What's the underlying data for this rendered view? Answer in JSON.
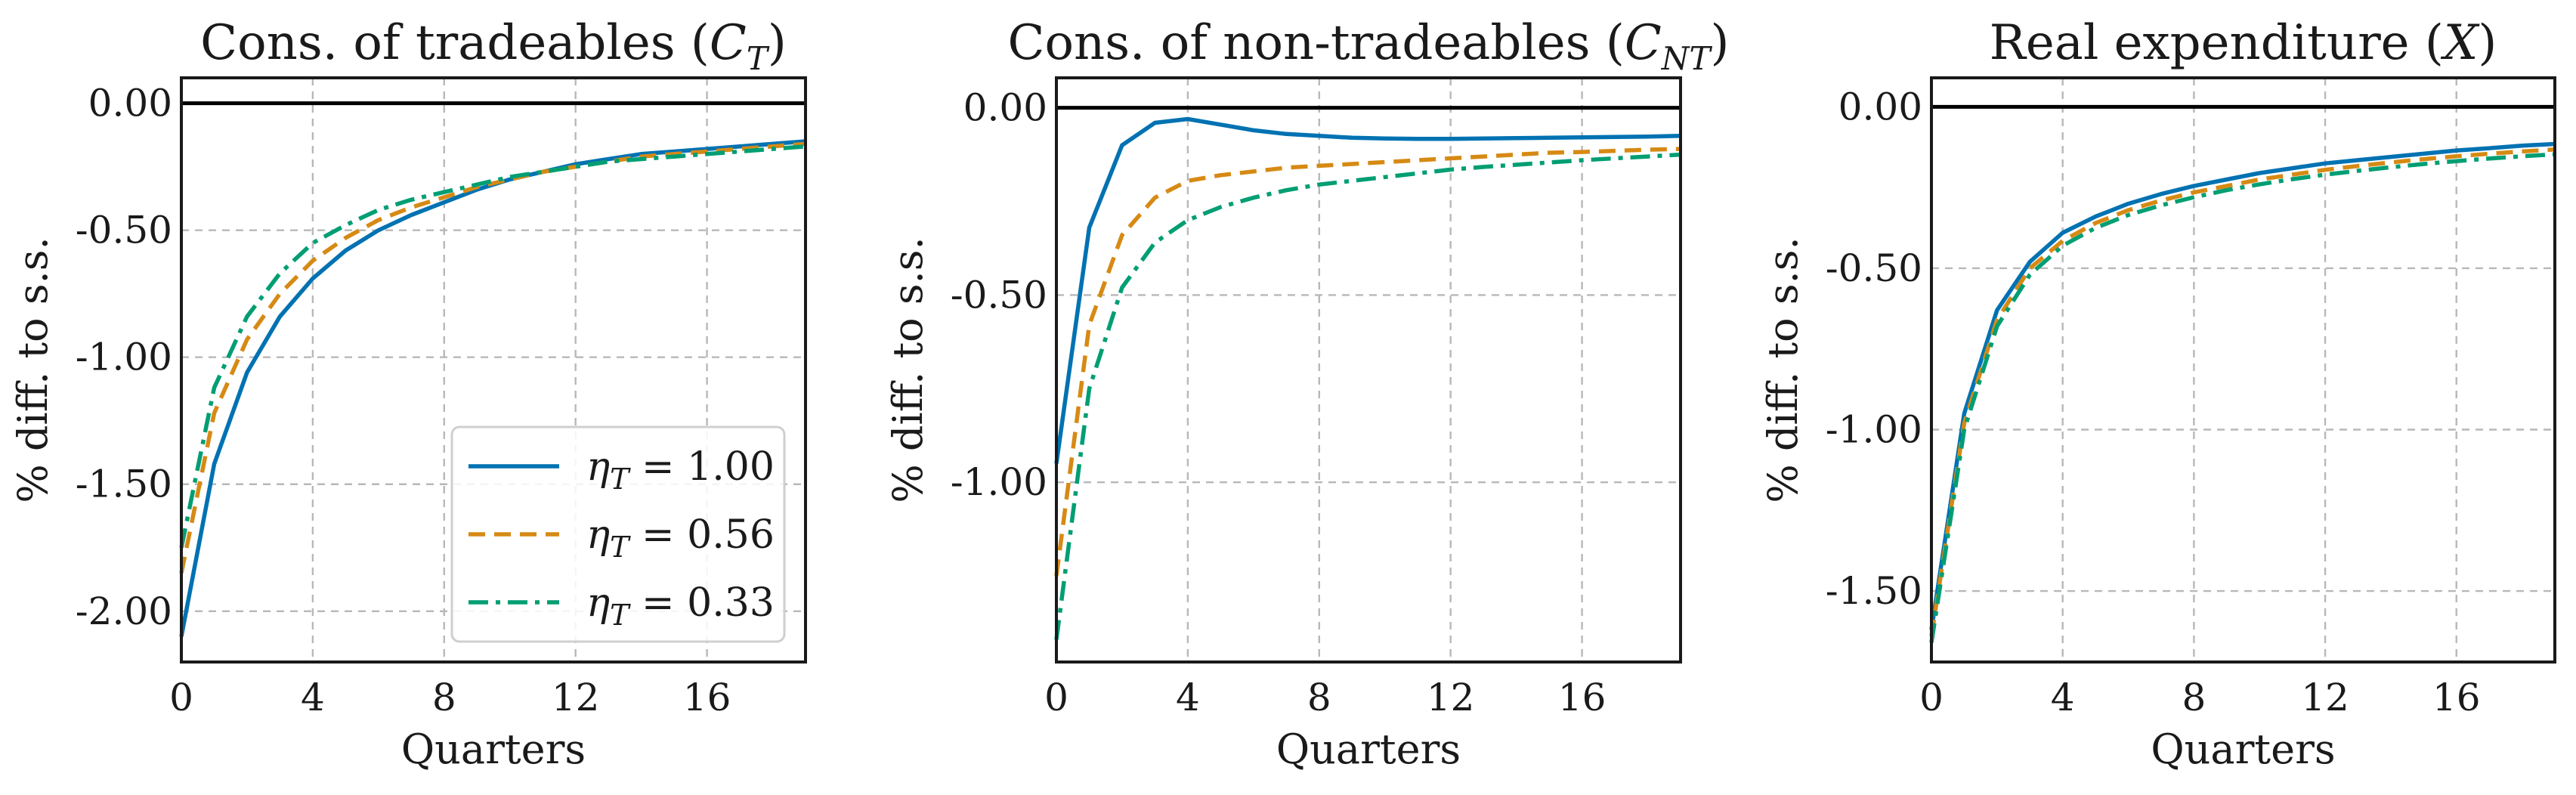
{
  "colors": {
    "eta_1_00": "#0072b2",
    "eta_0_56": "#d68a14",
    "eta_0_33": "#009e73"
  },
  "chart_data": [
    {
      "type": "line",
      "title": "Cons. of tradeables (C",
      "title_sub": "T",
      "title_close": ")",
      "xlabel": "Quarters",
      "ylabel": "% diff. to s.s.",
      "xlim": [
        0,
        19
      ],
      "ylim": [
        -2.2,
        0.1
      ],
      "xticks": [
        0,
        4,
        8,
        12,
        16
      ],
      "xtick_labels": [
        "0",
        "4",
        "8",
        "12",
        "16"
      ],
      "yticks": [
        0,
        -0.5,
        -1.0,
        -1.5,
        -2.0
      ],
      "ytick_labels": [
        "0.00",
        "-0.50",
        "-1.00",
        "-1.50",
        "-2.00"
      ],
      "grid": true,
      "zero_line": true,
      "legend": {
        "position": "lower-right",
        "entries": [
          {
            "symbol": "η",
            "sub": "T",
            "text": " = 1.00",
            "style": "solid",
            "color": "#0072b2"
          },
          {
            "symbol": "η",
            "sub": "T",
            "text": " = 0.56",
            "style": "dashed",
            "color": "#d68a14"
          },
          {
            "symbol": "η",
            "sub": "T",
            "text": " = 0.33",
            "style": "dashdot",
            "color": "#009e73"
          }
        ]
      },
      "x": [
        0,
        1,
        2,
        3,
        4,
        5,
        6,
        7,
        8,
        9,
        10,
        11,
        12,
        13,
        14,
        15,
        16,
        17,
        18,
        19
      ],
      "series": [
        {
          "name": "η_T = 1.00",
          "style": "solid",
          "color": "#0072b2",
          "values": [
            -2.1,
            -1.42,
            -1.06,
            -0.84,
            -0.69,
            -0.58,
            -0.5,
            -0.44,
            -0.39,
            -0.34,
            -0.3,
            -0.27,
            -0.24,
            -0.22,
            -0.2,
            -0.19,
            -0.18,
            -0.17,
            -0.16,
            -0.15
          ]
        },
        {
          "name": "η_T = 0.56",
          "style": "dashed",
          "color": "#d68a14",
          "values": [
            -1.85,
            -1.22,
            -0.93,
            -0.75,
            -0.62,
            -0.53,
            -0.46,
            -0.41,
            -0.37,
            -0.33,
            -0.3,
            -0.27,
            -0.25,
            -0.23,
            -0.21,
            -0.2,
            -0.19,
            -0.18,
            -0.17,
            -0.16
          ]
        },
        {
          "name": "η_T = 0.33",
          "style": "dashdot",
          "color": "#009e73",
          "values": [
            -1.75,
            -1.12,
            -0.84,
            -0.67,
            -0.55,
            -0.48,
            -0.42,
            -0.38,
            -0.35,
            -0.32,
            -0.29,
            -0.27,
            -0.25,
            -0.23,
            -0.22,
            -0.21,
            -0.2,
            -0.19,
            -0.18,
            -0.17
          ]
        }
      ]
    },
    {
      "type": "line",
      "title": "Cons. of non-tradeables (C",
      "title_sub": "NT",
      "title_close": ")",
      "xlabel": "Quarters",
      "ylabel": "% diff. to s.s.",
      "xlim": [
        0,
        19
      ],
      "ylim": [
        -1.48,
        0.08
      ],
      "xticks": [
        0,
        4,
        8,
        12,
        16
      ],
      "xtick_labels": [
        "0",
        "4",
        "8",
        "12",
        "16"
      ],
      "yticks": [
        0,
        -0.5,
        -1.0
      ],
      "ytick_labels": [
        "0.00",
        "-0.50",
        "-1.00"
      ],
      "grid": true,
      "zero_line": true,
      "x": [
        0,
        1,
        2,
        3,
        4,
        5,
        6,
        7,
        8,
        9,
        10,
        11,
        12,
        13,
        14,
        15,
        16,
        17,
        18,
        19
      ],
      "series": [
        {
          "name": "η_T = 1.00",
          "style": "solid",
          "color": "#0072b2",
          "values": [
            -0.95,
            -0.32,
            -0.1,
            -0.04,
            -0.03,
            -0.045,
            -0.06,
            -0.07,
            -0.075,
            -0.08,
            -0.082,
            -0.083,
            -0.083,
            -0.082,
            -0.081,
            -0.08,
            -0.079,
            -0.078,
            -0.077,
            -0.075
          ]
        },
        {
          "name": "η_T = 0.56",
          "style": "dashed",
          "color": "#d68a14",
          "values": [
            -1.25,
            -0.58,
            -0.34,
            -0.24,
            -0.195,
            -0.18,
            -0.17,
            -0.16,
            -0.155,
            -0.15,
            -0.145,
            -0.14,
            -0.135,
            -0.13,
            -0.125,
            -0.12,
            -0.118,
            -0.115,
            -0.112,
            -0.11
          ]
        },
        {
          "name": "η_T = 0.33",
          "style": "dashdot",
          "color": "#009e73",
          "values": [
            -1.42,
            -0.75,
            -0.48,
            -0.36,
            -0.3,
            -0.265,
            -0.24,
            -0.22,
            -0.205,
            -0.195,
            -0.185,
            -0.175,
            -0.165,
            -0.158,
            -0.152,
            -0.146,
            -0.14,
            -0.135,
            -0.13,
            -0.125
          ]
        }
      ]
    },
    {
      "type": "line",
      "title": "Real expenditure (X)",
      "xlabel": "Quarters",
      "ylabel": "% diff. to s.s.",
      "xlim": [
        0,
        19
      ],
      "ylim": [
        -1.72,
        0.09
      ],
      "xticks": [
        0,
        4,
        8,
        12,
        16
      ],
      "xtick_labels": [
        "0",
        "4",
        "8",
        "12",
        "16"
      ],
      "yticks": [
        0,
        -0.5,
        -1.0,
        -1.5
      ],
      "ytick_labels": [
        "0.00",
        "-0.50",
        "-1.00",
        "-1.50"
      ],
      "grid": true,
      "zero_line": true,
      "x": [
        0,
        1,
        2,
        3,
        4,
        5,
        6,
        7,
        8,
        9,
        10,
        11,
        12,
        13,
        14,
        15,
        16,
        17,
        18,
        19
      ],
      "series": [
        {
          "name": "η_T = 1.00",
          "style": "solid",
          "color": "#0072b2",
          "values": [
            -1.62,
            -0.95,
            -0.63,
            -0.48,
            -0.39,
            -0.34,
            -0.3,
            -0.27,
            -0.245,
            -0.225,
            -0.205,
            -0.19,
            -0.175,
            -0.165,
            -0.155,
            -0.145,
            -0.135,
            -0.128,
            -0.12,
            -0.115
          ]
        },
        {
          "name": "η_T = 0.56",
          "style": "dashed",
          "color": "#d68a14",
          "values": [
            -1.64,
            -0.98,
            -0.66,
            -0.5,
            -0.415,
            -0.36,
            -0.32,
            -0.29,
            -0.265,
            -0.245,
            -0.225,
            -0.21,
            -0.195,
            -0.183,
            -0.172,
            -0.162,
            -0.153,
            -0.145,
            -0.138,
            -0.132
          ]
        },
        {
          "name": "η_T = 0.33",
          "style": "dashdot",
          "color": "#009e73",
          "values": [
            -1.66,
            -1.0,
            -0.68,
            -0.52,
            -0.43,
            -0.375,
            -0.335,
            -0.305,
            -0.28,
            -0.258,
            -0.24,
            -0.224,
            -0.21,
            -0.198,
            -0.187,
            -0.177,
            -0.168,
            -0.16,
            -0.153,
            -0.147
          ]
        }
      ]
    }
  ]
}
